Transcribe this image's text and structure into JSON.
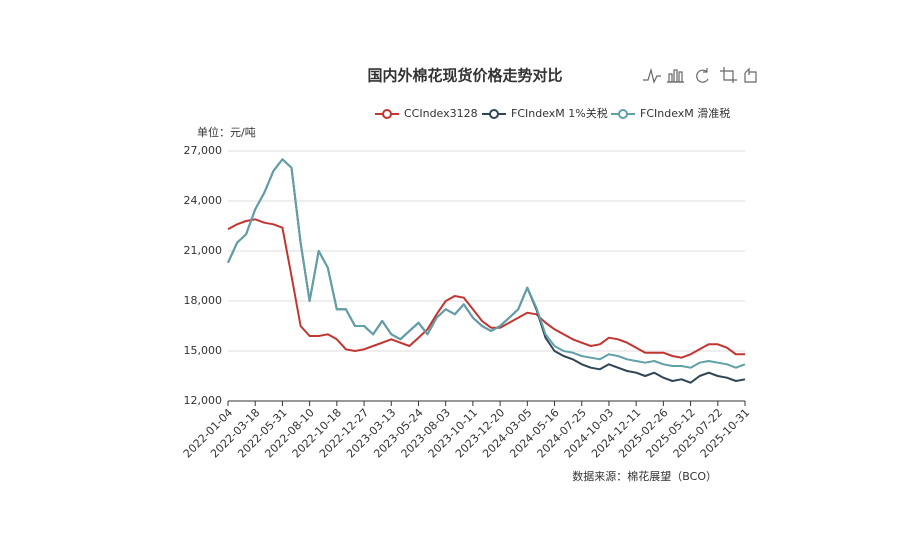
{
  "chart_data": {
    "type": "line",
    "title": "国内外棉花现货价格走势对比",
    "y_label": "单位：元/吨",
    "source": "数据来源：棉花展望（BCO）",
    "x": [
      "2022-01-04",
      null,
      null,
      "2022-03-18",
      null,
      null,
      "2022-05-31",
      null,
      null,
      "2022-08-10",
      null,
      null,
      "2022-10-18",
      null,
      null,
      "2022-12-27",
      null,
      null,
      "2023-03-13",
      null,
      null,
      "2023-05-24",
      null,
      null,
      "2023-08-03",
      null,
      null,
      "2023-10-11",
      null,
      null,
      "2023-12-20",
      null,
      null,
      "2024-03-05",
      null,
      null,
      "2024-05-16",
      null,
      null,
      "2024-07-25",
      null,
      null,
      "2024-10-03",
      null,
      null,
      "2024-12-11",
      null,
      null,
      "2025-02-26",
      null,
      null,
      "2025-05-12",
      null,
      null,
      "2025-07-22",
      null,
      null,
      "2025-10-31"
    ],
    "series": [
      {
        "name": "CCIndex3128",
        "color": "#c23531",
        "values": [
          22300,
          22600,
          22800,
          22900,
          22700,
          22600,
          22400,
          19500,
          16500,
          15900,
          15900,
          16000,
          15700,
          15100,
          15000,
          15100,
          15300,
          15500,
          15700,
          15500,
          15300,
          15800,
          16300,
          17200,
          18000,
          18300,
          18200,
          17500,
          16800,
          16400,
          16400,
          16700,
          17000,
          17300,
          17200,
          16700,
          16300,
          16000,
          15700,
          15500,
          15300,
          15400,
          15800,
          15700,
          15500,
          15200,
          14900,
          14900,
          14900,
          14700,
          14600,
          14800,
          15100,
          15400,
          15400,
          15200,
          14800,
          14800
        ]
      },
      {
        "name": "FCIndexM 1%关税",
        "color": "#2f4554",
        "values": [
          20300,
          21500,
          22000,
          23500,
          24500,
          25800,
          26500,
          26000,
          21500,
          18000,
          21000,
          20000,
          17500,
          17500,
          16500,
          16500,
          16000,
          16800,
          16000,
          15700,
          16200,
          16700,
          16000,
          17000,
          17500,
          17200,
          17800,
          17000,
          16500,
          16200,
          16500,
          17000,
          17500,
          18800,
          17500,
          15800,
          15000,
          14700,
          14500,
          14200,
          14000,
          13900,
          14200,
          14000,
          13800,
          13700,
          13500,
          13700,
          13400,
          13200,
          13300,
          13100,
          13500,
          13700,
          13500,
          13400,
          13200,
          13300
        ]
      },
      {
        "name": "FCIndexM 滑准税",
        "color": "#61a0a8",
        "values": [
          20300,
          21500,
          22000,
          23500,
          24500,
          25800,
          26500,
          26000,
          21500,
          18000,
          21000,
          20000,
          17500,
          17500,
          16500,
          16500,
          16000,
          16800,
          16000,
          15700,
          16200,
          16700,
          16000,
          17000,
          17500,
          17200,
          17800,
          17000,
          16500,
          16200,
          16500,
          17000,
          17500,
          18800,
          17600,
          16000,
          15300,
          15000,
          14900,
          14700,
          14600,
          14500,
          14800,
          14700,
          14500,
          14400,
          14300,
          14400,
          14200,
          14100,
          14100,
          14000,
          14300,
          14400,
          14300,
          14200,
          14000,
          14200
        ]
      }
    ],
    "ylim": [
      12000,
      27000
    ],
    "yticks": [
      {
        "value": 12000,
        "label": "12,000"
      },
      {
        "value": 15000,
        "label": "15,000"
      },
      {
        "value": 18000,
        "label": "18,000"
      },
      {
        "value": 21000,
        "label": "21,000"
      },
      {
        "value": 24000,
        "label": "24,000"
      },
      {
        "value": 27000,
        "label": "27,000"
      }
    ],
    "grid": true
  }
}
